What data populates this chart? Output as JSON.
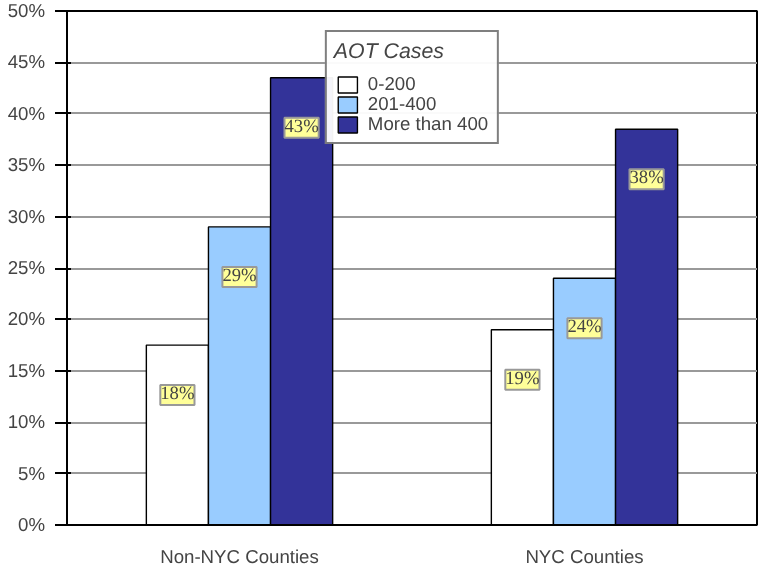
{
  "chart_data": {
    "type": "bar",
    "legend_title": "AOT Cases",
    "categories": [
      "Non-NYC Counties",
      "NYC Counties"
    ],
    "series": [
      {
        "name": "0-200",
        "color": "#ffffff",
        "values": [
          17.5,
          19
        ],
        "value_labels": [
          "18%",
          "19%"
        ]
      },
      {
        "name": "201-400",
        "color": "#99ccff",
        "values": [
          29,
          24
        ],
        "value_labels": [
          "29%",
          "24%"
        ]
      },
      {
        "name": "More than 400",
        "color": "#333399",
        "values": [
          43.5,
          38.5
        ],
        "value_labels": [
          "43%",
          "38%"
        ]
      }
    ],
    "ylim": [
      0,
      50
    ],
    "yticks": [
      {
        "value": 0,
        "label": "0%"
      },
      {
        "value": 5,
        "label": "5%"
      },
      {
        "value": 10,
        "label": "10%"
      },
      {
        "value": 15,
        "label": "15%"
      },
      {
        "value": 20,
        "label": "20%"
      },
      {
        "value": 25,
        "label": "25%"
      },
      {
        "value": 30,
        "label": "30%"
      },
      {
        "value": 35,
        "label": "35%"
      },
      {
        "value": 40,
        "label": "40%"
      },
      {
        "value": 45,
        "label": "45%"
      },
      {
        "value": 50,
        "label": "50%"
      }
    ],
    "grid": "y",
    "legend": "top"
  }
}
